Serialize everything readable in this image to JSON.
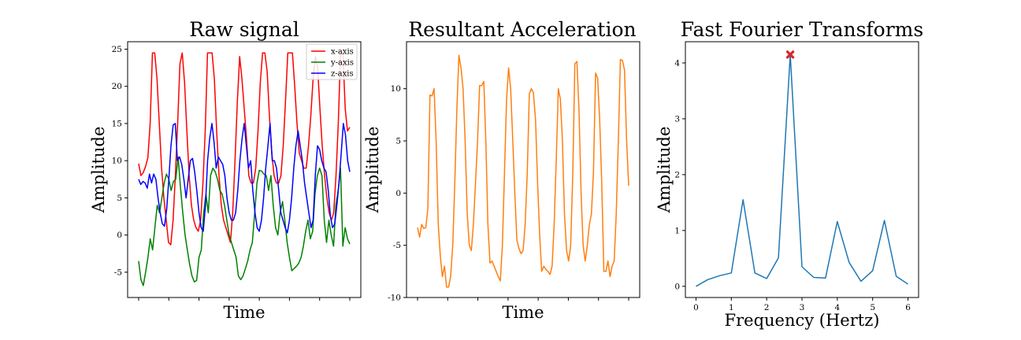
{
  "chart_data": [
    {
      "type": "line",
      "title": "Raw signal",
      "xlabel": "Time",
      "ylabel": "Amplitude",
      "ylim": [
        -8.4,
        26.0
      ],
      "yticks": [
        -5,
        0,
        5,
        10,
        15,
        20,
        25
      ],
      "x_tick_count": 8,
      "x_tick_labels_shown": false,
      "legend": "top-right",
      "grid": false,
      "series": [
        {
          "name": "x-axis",
          "color": "#ff0000",
          "values": [
            9.6,
            8.0,
            8.4,
            9.2,
            10.4,
            15.0,
            24.5,
            24.5,
            21.0,
            15.0,
            9.0,
            5.0,
            2.0,
            -1.0,
            -1.3,
            2.0,
            8.0,
            15.0,
            23.0,
            24.5,
            20.5,
            14.0,
            8.0,
            4.0,
            2.0,
            1.0,
            0.5,
            2.0,
            7.0,
            14.0,
            24.5,
            24.5,
            24.5,
            21.0,
            14.0,
            8.0,
            4.0,
            2.0,
            1.0,
            0.0,
            -1.0,
            3.0,
            10.0,
            18.0,
            24.0,
            21.0,
            17.0,
            13.0,
            8.0,
            7.0,
            7.0,
            9.0,
            14.0,
            20.5,
            24.5,
            24.5,
            22.0,
            16.0,
            11.0,
            8.0,
            7.0,
            7.0,
            8.0,
            12.0,
            18.0,
            24.5,
            24.5,
            24.5,
            20.0,
            15.0,
            11.0,
            10.0,
            9.0,
            9.0,
            12.0,
            16.0,
            21.0,
            24.0,
            22.5,
            17.0,
            12.0,
            8.0,
            5.0,
            3.0,
            2.0,
            3.0,
            8.0,
            15.0,
            24.5,
            24.5,
            17.0,
            14.0,
            14.5
          ]
        },
        {
          "name": "y-axis",
          "color": "#008000",
          "values": [
            -3.5,
            -6.0,
            -6.8,
            -5.0,
            -3.0,
            -0.5,
            -2.0,
            1.0,
            4.0,
            3.0,
            5.0,
            7.0,
            8.2,
            7.5,
            6.0,
            7.2,
            7.5,
            10.5,
            6.5,
            3.0,
            0.0,
            -2.0,
            -4.0,
            -5.5,
            -6.3,
            -6.1,
            -3.0,
            -2.0,
            3.0,
            5.5,
            3.0,
            8.0,
            9.0,
            8.5,
            7.5,
            6.0,
            5.5,
            4.0,
            2.0,
            0.0,
            -1.0,
            -2.0,
            -3.0,
            -5.5,
            -6.0,
            -5.5,
            -4.5,
            -3.5,
            -2.0,
            -1.0,
            3.0,
            7.0,
            8.7,
            8.6,
            8.2,
            8.0,
            6.0,
            8.0,
            4.0,
            1.0,
            0.0,
            3.0,
            4.5,
            2.0,
            -1.0,
            -3.0,
            -4.8,
            -4.5,
            -4.2,
            -3.8,
            -3.0,
            -1.5,
            0.5,
            2.0,
            -0.5,
            0.5,
            5.5,
            8.0,
            9.0,
            8.0,
            2.0,
            -1.0,
            2.0,
            0.0,
            -1.5,
            4.0,
            6.0,
            9.0,
            -1.5,
            1.0,
            -0.5,
            -1.2
          ]
        },
        {
          "name": "z-axis",
          "color": "#0000ff",
          "values": [
            7.5,
            6.8,
            7.2,
            7.0,
            6.3,
            8.2,
            7.0,
            8.2,
            7.5,
            5.0,
            3.0,
            1.5,
            1.2,
            3.5,
            7.5,
            12.0,
            14.8,
            15.0,
            10.0,
            10.5,
            9.5,
            7.5,
            5.0,
            7.5,
            10.0,
            10.3,
            8.5,
            6.0,
            3.0,
            1.0,
            0.5,
            4.0,
            10.0,
            13.0,
            15.0,
            12.5,
            9.0,
            10.5,
            10.0,
            9.5,
            8.0,
            5.0,
            3.0,
            2.0,
            2.0,
            3.0,
            6.0,
            10.0,
            13.0,
            15.0,
            12.0,
            9.0,
            10.0,
            6.0,
            3.0,
            1.0,
            0.5,
            2.0,
            5.0,
            9.0,
            12.0,
            15.0,
            10.0,
            10.0,
            9.0,
            6.0,
            3.0,
            2.0,
            1.0,
            0.3,
            2.0,
            5.0,
            9.0,
            12.0,
            14.0,
            12.0,
            10.0,
            7.0,
            5.0,
            3.0,
            1.0,
            2.0,
            8.0,
            12.0,
            11.5,
            10.0,
            9.0,
            8.5,
            6.0,
            2.5,
            1.0,
            1.5,
            4.0,
            7.0,
            11.0,
            15.0,
            13.5,
            10.0,
            8.5
          ]
        }
      ]
    },
    {
      "type": "line",
      "title": "Resultant Acceleration",
      "xlabel": "Time",
      "ylabel": "Amplitude",
      "ylim": [
        -10.0,
        14.5
      ],
      "yticks": [
        -10,
        -5,
        0,
        5,
        10
      ],
      "x_tick_count": 8,
      "x_tick_labels_shown": false,
      "grid": false,
      "series": [
        {
          "color": "#ff7f0e",
          "values": [
            -3.3,
            -4.2,
            -3.0,
            -3.4,
            -3.3,
            -1.5,
            9.4,
            9.3,
            10.0,
            5.0,
            -3.0,
            -6.0,
            -8.0,
            -7.0,
            -9.0,
            -9.0,
            -8.0,
            -5.0,
            1.0,
            8.0,
            13.2,
            12.0,
            10.0,
            5.0,
            -2.0,
            -5.0,
            -5.5,
            -3.0,
            1.0,
            5.0,
            10.3,
            10.3,
            10.7,
            5.0,
            -3.0,
            -6.7,
            -6.5,
            -7.0,
            -7.5,
            -8.0,
            -8.4,
            -5.0,
            2.0,
            9.0,
            12.0,
            10.0,
            5.0,
            0.0,
            -4.5,
            -5.3,
            -5.8,
            -5.5,
            -3.0,
            2.0,
            9.5,
            10.0,
            9.6,
            7.0,
            1.0,
            -4.0,
            -7.5,
            -7.0,
            -7.3,
            -7.5,
            -7.8,
            -7.0,
            -3.0,
            3.0,
            10.0,
            9.0,
            5.0,
            -2.0,
            -5.5,
            -6.5,
            -5.0,
            2.0,
            12.4,
            12.6,
            8.0,
            0.0,
            -5.0,
            -6.5,
            -5.0,
            -3.0,
            -2.0,
            2.0,
            11.5,
            11.0,
            7.0,
            1.0,
            -7.5,
            -7.5,
            -6.5,
            -8.0,
            -7.0,
            -6.5,
            -2.0,
            5.0,
            12.8,
            12.7,
            11.8,
            5.0,
            0.7
          ]
        }
      ]
    },
    {
      "type": "line",
      "title": "Fast Fourier Transforms",
      "xlabel": "Frequency (Hertz)",
      "ylabel": "Amplitude",
      "xlim": [
        -0.3,
        6.3
      ],
      "ylim": [
        -0.2,
        4.38
      ],
      "xticks": [
        0,
        1,
        2,
        3,
        4,
        5,
        6
      ],
      "yticks": [
        0,
        1,
        2,
        3,
        4
      ],
      "grid": false,
      "series": [
        {
          "color": "#1f77b4",
          "x": [
            0.0,
            0.333,
            0.667,
            1.0,
            1.333,
            1.667,
            2.0,
            2.333,
            2.667,
            3.0,
            3.333,
            3.667,
            4.0,
            4.333,
            4.667,
            5.0,
            5.333,
            5.667,
            6.0
          ],
          "y": [
            0.0,
            0.12,
            0.19,
            0.24,
            1.55,
            0.24,
            0.14,
            0.51,
            4.15,
            0.35,
            0.16,
            0.15,
            1.16,
            0.43,
            0.09,
            0.28,
            1.18,
            0.18,
            0.04
          ]
        }
      ],
      "peak_marker": {
        "x": 2.667,
        "y": 4.15,
        "color": "#d62728",
        "symbol": "X"
      }
    }
  ]
}
